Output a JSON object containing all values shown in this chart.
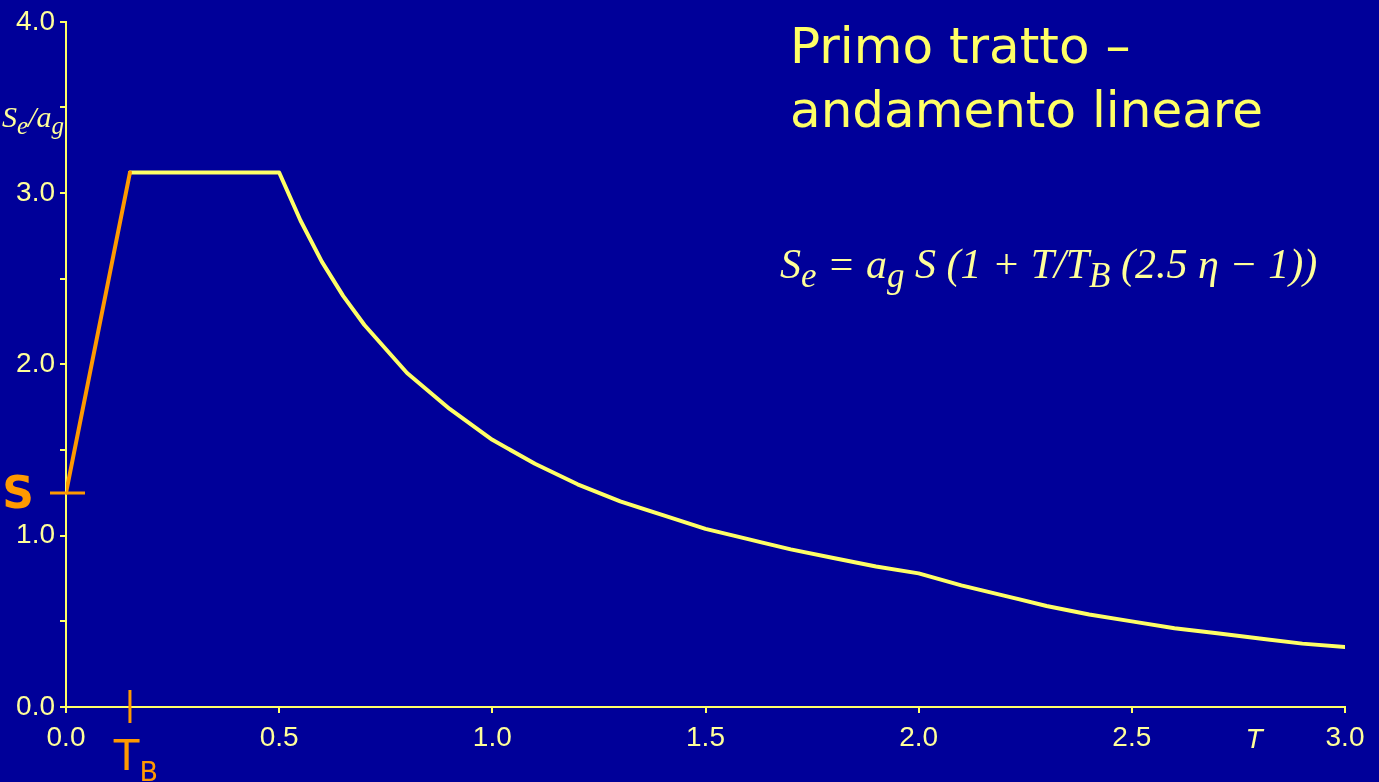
{
  "chart_data": {
    "type": "line",
    "title": "Primo tratto – andamento lineare",
    "xlabel": "T",
    "ylabel": "S$_{e}$/a$_{g}$",
    "annotations": [
      "S$_{e}$ = a$_{g}$ S (1 + T/T$_{B}$ (2.5 η − 1))"
    ],
    "series": [
      {
        "color": "#ff9900",
        "x": [
          0,
          0.15
        ],
        "values": [
          1.25,
          3.12
        ]
      },
      {
        "color": "#ffff66",
        "x": [
          0.15,
          0.5,
          0.55,
          0.6,
          0.65,
          0.7,
          0.8,
          0.9,
          1.0,
          1.1,
          1.2,
          1.3,
          1.4,
          1.5,
          1.6,
          1.7,
          1.8,
          1.9,
          2.0,
          2.1,
          2.2,
          2.3,
          2.4,
          2.5,
          2.6,
          2.7,
          2.8,
          2.9,
          3.0
        ],
        "values": [
          3.12,
          3.12,
          2.84,
          2.6,
          2.4,
          2.23,
          1.95,
          1.74,
          1.56,
          1.42,
          1.3,
          1.2,
          1.12,
          1.04,
          0.98,
          0.92,
          0.87,
          0.82,
          0.78,
          0.71,
          0.65,
          0.59,
          0.54,
          0.5,
          0.46,
          0.43,
          0.4,
          0.37,
          0.35
        ]
      }
    ],
    "xlim": [
      0,
      3
    ],
    "xticks": [
      {
        "value": 0,
        "label": "0.0"
      },
      {
        "value": 0.5,
        "label": "0.5"
      },
      {
        "value": 1,
        "label": "1.0"
      },
      {
        "value": 1.5,
        "label": "1.5"
      },
      {
        "value": 2,
        "label": "2.0"
      },
      {
        "value": 2.5,
        "label": "2.5"
      },
      {
        "value": 3,
        "label": "3.0"
      }
    ],
    "ylim": [
      0,
      4
    ],
    "yticks": [
      {
        "value": 0,
        "label": "0.0"
      },
      {
        "value": 0.5,
        "label": null
      },
      {
        "value": 1,
        "label": "1.0"
      },
      {
        "value": 1.5,
        "label": null
      },
      {
        "value": 2,
        "label": "2.0"
      },
      {
        "value": 2.5,
        "label": null
      },
      {
        "value": 3,
        "label": "3.0"
      },
      {
        "value": 3.5,
        "label": null
      },
      {
        "value": 4,
        "label": "4.0"
      }
    ],
    "ref_lines": [
      {
        "axis": "y",
        "value": 1.25,
        "label": "S",
        "color": "#ff9900"
      },
      {
        "axis": "x",
        "value": 0.15,
        "label": "T$_{B}$",
        "color": "#ff9900"
      }
    ],
    "grid": false,
    "legend": false,
    "marker": "none"
  }
}
